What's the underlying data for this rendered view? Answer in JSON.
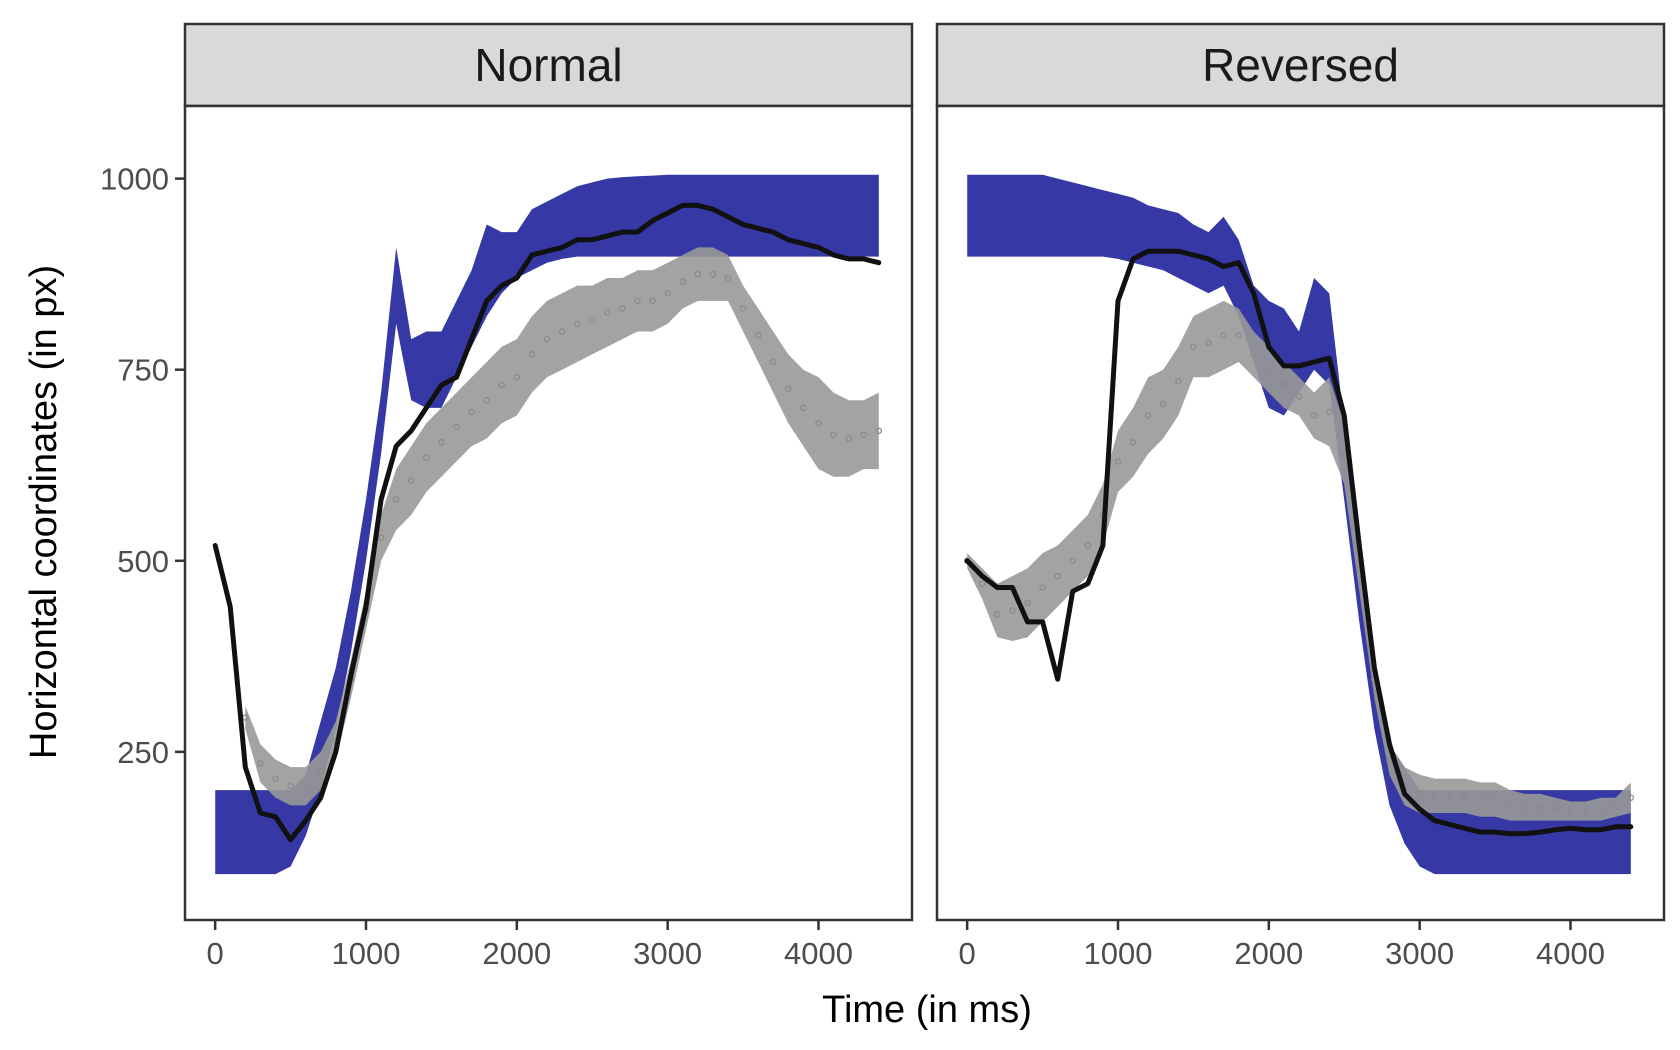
{
  "chart_data": {
    "type": "line",
    "xlabel": "Time (in ms)",
    "ylabel": "Horizontal coordinates (in px)",
    "xlim": [
      -200,
      4620
    ],
    "ylim": [
      30,
      1095
    ],
    "x_ticks": [
      "0",
      "1000",
      "2000",
      "3000",
      "4000"
    ],
    "y_ticks": [
      "250",
      "500",
      "750",
      "1000"
    ],
    "grid": false,
    "legend": "none",
    "colors": {
      "target_band": "#2b2da0",
      "gaze_band": "#999999",
      "gaze_dots": "#8a8a8a",
      "response_line": "#111111",
      "strip_fill": "#d9d9d9",
      "panel_border": "#333333"
    },
    "panels": [
      {
        "label": "Normal",
        "series": [
          {
            "kind": "band",
            "color_key": "target_band",
            "x": [
              0,
              100,
              200,
              300,
              400,
              500,
              600,
              700,
              800,
              900,
              1000,
              1100,
              1200,
              1300,
              1400,
              1500,
              1600,
              1700,
              1800,
              1900,
              2000,
              2100,
              2200,
              2300,
              2400,
              2500,
              2600,
              2700,
              2800,
              2900,
              3000,
              3100,
              3200,
              3300,
              3400,
              3500,
              3600,
              3700,
              3800,
              3900,
              4000,
              4100,
              4200,
              4300,
              4400
            ],
            "upper": [
              200,
              200,
              200,
              200,
              200,
              200,
              220,
              290,
              360,
              460,
              580,
              720,
              910,
              790,
              800,
              800,
              840,
              880,
              940,
              930,
              930,
              960,
              970,
              980,
              990,
              995,
              1000,
              1002,
              1003,
              1004,
              1005,
              1005,
              1005,
              1005,
              1005,
              1005,
              1005,
              1005,
              1005,
              1005,
              1005,
              1005,
              1005,
              1005,
              1005
            ],
            "lower": [
              90,
              90,
              90,
              90,
              90,
              100,
              140,
              200,
              280,
              380,
              500,
              640,
              810,
              710,
              700,
              700,
              740,
              780,
              820,
              850,
              870,
              880,
              890,
              895,
              898,
              898,
              898,
              898,
              898,
              898,
              898,
              898,
              898,
              898,
              898,
              898,
              898,
              898,
              898,
              898,
              898,
              898,
              898,
              898,
              898
            ]
          },
          {
            "kind": "band",
            "color_key": "gaze_band",
            "x": [
              200,
              300,
              400,
              500,
              600,
              700,
              800,
              900,
              1000,
              1100,
              1200,
              1300,
              1400,
              1500,
              1600,
              1700,
              1800,
              1900,
              2000,
              2100,
              2200,
              2300,
              2400,
              2500,
              2600,
              2700,
              2800,
              2900,
              3000,
              3100,
              3200,
              3300,
              3400,
              3500,
              3600,
              3700,
              3800,
              3900,
              4000,
              4100,
              4200,
              4300,
              4400
            ],
            "upper": [
              310,
              260,
              240,
              230,
              230,
              250,
              290,
              370,
              460,
              560,
              620,
              650,
              680,
              700,
              720,
              740,
              760,
              780,
              790,
              820,
              840,
              850,
              860,
              860,
              870,
              870,
              880,
              880,
              890,
              900,
              910,
              910,
              900,
              860,
              830,
              800,
              770,
              750,
              740,
              720,
              710,
              710,
              720
            ],
            "lower": [
              280,
              210,
              190,
              180,
              180,
              200,
              240,
              320,
              410,
              500,
              540,
              560,
              590,
              610,
              630,
              650,
              660,
              680,
              690,
              720,
              740,
              750,
              760,
              770,
              780,
              790,
              800,
              800,
              810,
              830,
              840,
              840,
              840,
              800,
              760,
              720,
              680,
              650,
              620,
              610,
              610,
              620,
              620
            ]
          },
          {
            "kind": "dots",
            "color_key": "gaze_dots",
            "x": [
              200,
              300,
              400,
              500,
              600,
              700,
              800,
              900,
              1000,
              1100,
              1200,
              1300,
              1400,
              1500,
              1600,
              1700,
              1800,
              1900,
              2000,
              2100,
              2200,
              2300,
              2400,
              2500,
              2600,
              2700,
              2800,
              2900,
              3000,
              3100,
              3200,
              3300,
              3400,
              3500,
              3600,
              3700,
              3800,
              3900,
              4000,
              4100,
              4200,
              4300,
              4400
            ],
            "y": [
              295,
              235,
              215,
              205,
              205,
              225,
              265,
              345,
              435,
              530,
              580,
              605,
              635,
              655,
              675,
              695,
              710,
              730,
              740,
              770,
              790,
              800,
              810,
              815,
              825,
              830,
              840,
              840,
              850,
              865,
              875,
              875,
              870,
              830,
              795,
              760,
              725,
              700,
              680,
              665,
              660,
              665,
              670
            ]
          },
          {
            "kind": "line",
            "color_key": "response_line",
            "x": [
              0,
              100,
              200,
              300,
              400,
              500,
              600,
              700,
              800,
              900,
              1000,
              1100,
              1200,
              1300,
              1400,
              1500,
              1600,
              1700,
              1800,
              1900,
              2000,
              2100,
              2200,
              2300,
              2400,
              2500,
              2600,
              2700,
              2800,
              2900,
              3000,
              3100,
              3200,
              3300,
              3400,
              3500,
              3600,
              3700,
              3800,
              3900,
              4000,
              4100,
              4200,
              4300,
              4400
            ],
            "y": [
              520,
              440,
              230,
              170,
              165,
              135,
              160,
              190,
              250,
              350,
              440,
              580,
              650,
              670,
              700,
              730,
              740,
              790,
              840,
              860,
              870,
              900,
              905,
              910,
              920,
              920,
              925,
              930,
              930,
              945,
              955,
              965,
              965,
              960,
              950,
              940,
              935,
              930,
              920,
              915,
              910,
              900,
              895,
              895,
              890
            ]
          }
        ]
      },
      {
        "label": "Reversed",
        "series": [
          {
            "kind": "band",
            "color_key": "target_band",
            "x": [
              0,
              100,
              200,
              300,
              400,
              500,
              600,
              700,
              800,
              900,
              1000,
              1100,
              1200,
              1300,
              1400,
              1500,
              1600,
              1700,
              1800,
              1900,
              2000,
              2100,
              2200,
              2300,
              2400,
              2500,
              2600,
              2700,
              2800,
              2900,
              3000,
              3100,
              3200,
              3300,
              3400,
              3500,
              3600,
              3700,
              3800,
              3900,
              4000,
              4100,
              4200,
              4300,
              4400
            ],
            "upper": [
              1005,
              1005,
              1005,
              1005,
              1005,
              1005,
              1000,
              995,
              990,
              985,
              980,
              975,
              965,
              960,
              955,
              940,
              930,
              950,
              920,
              860,
              840,
              830,
              800,
              870,
              850,
              680,
              500,
              340,
              260,
              230,
              200,
              200,
              200,
              200,
              200,
              200,
              200,
              200,
              200,
              200,
              200,
              200,
              200,
              200,
              200
            ],
            "lower": [
              898,
              898,
              898,
              898,
              898,
              898,
              898,
              898,
              898,
              898,
              895,
              890,
              885,
              880,
              870,
              860,
              850,
              860,
              820,
              760,
              700,
              690,
              720,
              750,
              730,
              580,
              420,
              280,
              180,
              130,
              100,
              90,
              90,
              90,
              90,
              90,
              90,
              90,
              90,
              90,
              90,
              90,
              90,
              90,
              90
            ]
          },
          {
            "kind": "band",
            "color_key": "gaze_band",
            "x": [
              0,
              100,
              200,
              300,
              400,
              500,
              600,
              700,
              800,
              900,
              1000,
              1100,
              1200,
              1300,
              1400,
              1500,
              1600,
              1700,
              1800,
              1900,
              2000,
              2100,
              2200,
              2300,
              2400,
              2500,
              2600,
              2700,
              2800,
              2900,
              3000,
              3100,
              3200,
              3300,
              3400,
              3500,
              3600,
              3700,
              3800,
              3900,
              4000,
              4100,
              4200,
              4300,
              4400
            ],
            "upper": [
              510,
              490,
              470,
              480,
              490,
              510,
              520,
              540,
              560,
              600,
              670,
              700,
              740,
              750,
              780,
              820,
              830,
              840,
              830,
              800,
              780,
              760,
              740,
              720,
              740,
              680,
              520,
              370,
              260,
              230,
              220,
              215,
              215,
              215,
              210,
              210,
              200,
              195,
              195,
              190,
              185,
              185,
              190,
              190,
              210
            ],
            "lower": [
              490,
              450,
              400,
              395,
              400,
              420,
              440,
              460,
              480,
              520,
              590,
              610,
              640,
              660,
              690,
              740,
              740,
              750,
              760,
              740,
              720,
              700,
              690,
              660,
              650,
              600,
              460,
              320,
              220,
              180,
              170,
              170,
              170,
              170,
              165,
              165,
              160,
              160,
              160,
              160,
              160,
              160,
              160,
              165,
              170
            ]
          },
          {
            "kind": "dots",
            "color_key": "gaze_dots",
            "x": [
              0,
              100,
              200,
              300,
              400,
              500,
              600,
              700,
              800,
              900,
              1000,
              1100,
              1200,
              1300,
              1400,
              1500,
              1600,
              1700,
              1800,
              1900,
              2000,
              2100,
              2200,
              2300,
              2400,
              2500,
              2600,
              2700,
              2800,
              2900,
              3000,
              3100,
              3200,
              3300,
              3400,
              3500,
              3600,
              3700,
              3800,
              3900,
              4000,
              4100,
              4200,
              4300,
              4400
            ],
            "y": [
              500,
              470,
              430,
              435,
              445,
              465,
              480,
              500,
              520,
              560,
              630,
              655,
              690,
              705,
              735,
              780,
              785,
              795,
              795,
              770,
              750,
              730,
              715,
              690,
              695,
              640,
              490,
              345,
              240,
              205,
              195,
              192,
              192,
              192,
              188,
              188,
              180,
              178,
              178,
              175,
              172,
              172,
              175,
              178,
              190
            ]
          },
          {
            "kind": "line",
            "color_key": "response_line",
            "x": [
              0,
              100,
              200,
              300,
              400,
              500,
              600,
              700,
              800,
              900,
              1000,
              1100,
              1200,
              1300,
              1400,
              1500,
              1600,
              1700,
              1800,
              1900,
              2000,
              2100,
              2200,
              2300,
              2400,
              2500,
              2600,
              2700,
              2800,
              2900,
              3000,
              3100,
              3200,
              3300,
              3400,
              3500,
              3600,
              3700,
              3800,
              3900,
              4000,
              4100,
              4200,
              4300,
              4400
            ],
            "y": [
              500,
              480,
              465,
              465,
              420,
              420,
              345,
              460,
              470,
              520,
              840,
              895,
              905,
              905,
              905,
              900,
              895,
              885,
              890,
              850,
              780,
              755,
              755,
              760,
              765,
              690,
              520,
              360,
              260,
              195,
              175,
              160,
              155,
              150,
              145,
              145,
              143,
              143,
              145,
              148,
              150,
              148,
              148,
              152,
              152
            ]
          }
        ]
      }
    ]
  }
}
